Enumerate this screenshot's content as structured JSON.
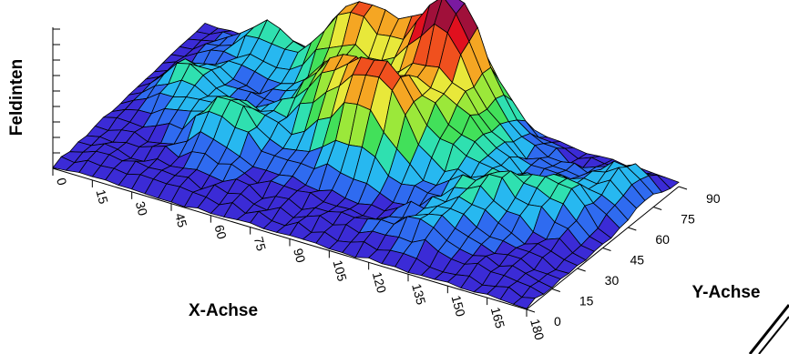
{
  "chart_data": {
    "type": "surface",
    "title": "",
    "xlabel": "X-Achse",
    "ylabel": "Y-Achse",
    "zlabel": "Feldinten",
    "x_ticks": [
      "0",
      "15",
      "30",
      "45",
      "60",
      "75",
      "90",
      "105",
      "120",
      "135",
      "150",
      "165",
      "180"
    ],
    "y_ticks": [
      "0",
      "15",
      "30",
      "45",
      "60",
      "75",
      "90"
    ],
    "xlim": [
      0,
      180
    ],
    "ylim": [
      0,
      90
    ],
    "colorscale": [
      "#3b2bd6",
      "#2f6bf0",
      "#27b8f0",
      "#2fe0b0",
      "#42e05a",
      "#9be83a",
      "#e8e83a",
      "#f5a623",
      "#f0501e",
      "#e0101e",
      "#a0103a",
      "#7a1aa0"
    ],
    "peaks": [
      {
        "x": 30,
        "y": 82,
        "height": 0.55
      },
      {
        "x": 62,
        "y": 78,
        "height": 0.95
      },
      {
        "x": 75,
        "y": 84,
        "height": 0.85
      },
      {
        "x": 95,
        "y": 78,
        "height": 1.05
      },
      {
        "x": 104,
        "y": 74,
        "height": 1.0
      },
      {
        "x": 110,
        "y": 88,
        "height": 0.8
      },
      {
        "x": 72,
        "y": 55,
        "height": 0.95
      },
      {
        "x": 88,
        "y": 45,
        "height": 0.9
      },
      {
        "x": 100,
        "y": 50,
        "height": 0.85
      },
      {
        "x": 120,
        "y": 60,
        "height": 0.55
      },
      {
        "x": 140,
        "y": 40,
        "height": 0.55
      },
      {
        "x": 160,
        "y": 50,
        "height": 0.45
      },
      {
        "x": 175,
        "y": 72,
        "height": 0.55
      },
      {
        "x": 45,
        "y": 35,
        "height": 0.65
      },
      {
        "x": 20,
        "y": 50,
        "height": 0.45
      },
      {
        "x": 130,
        "y": 20,
        "height": 0.35
      }
    ]
  }
}
